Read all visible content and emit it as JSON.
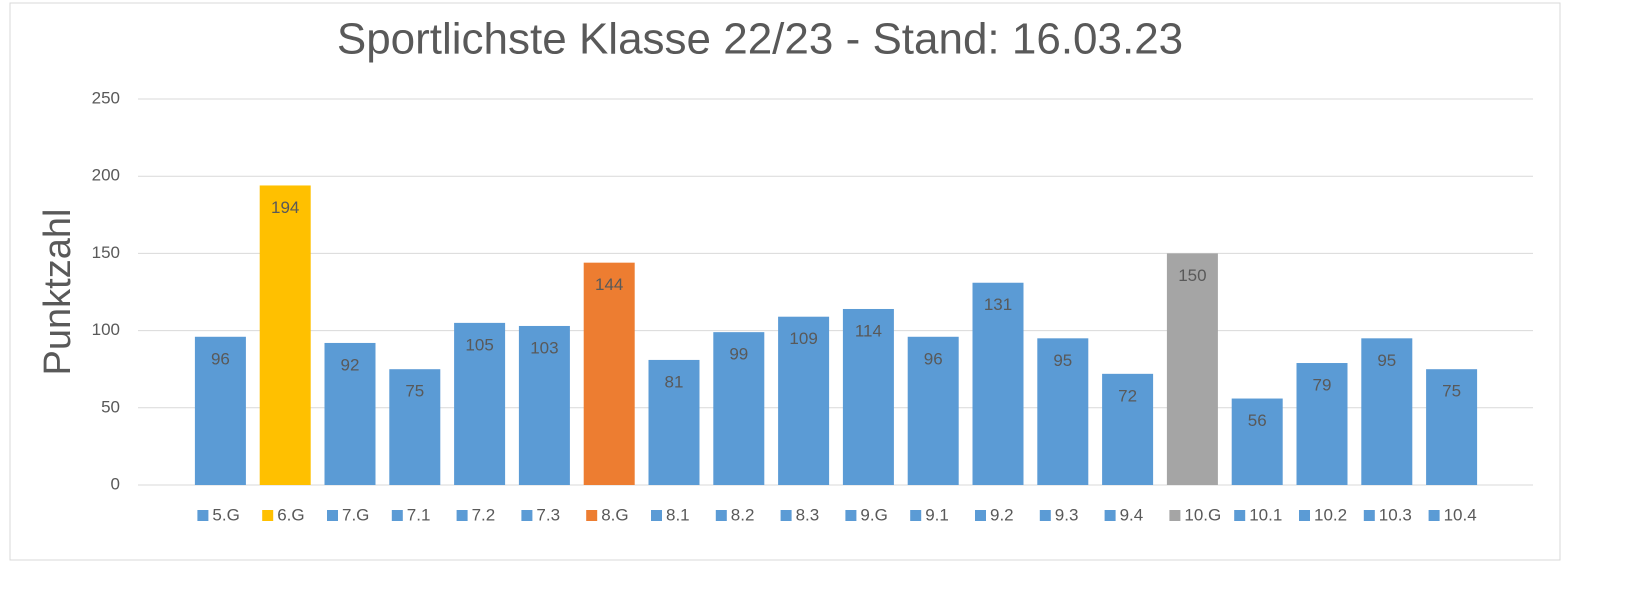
{
  "chart_data": {
    "type": "bar",
    "title": "Sportlichste Klasse 22/23 - Stand: 16.03.23",
    "y_label": "Punktzahl",
    "categories": [
      "5.G",
      "6.G",
      "7.G",
      "7.1",
      "7.2",
      "7.3",
      "8.G",
      "8.1",
      "8.2",
      "8.3",
      "9.G",
      "9.1",
      "9.2",
      "9.3",
      "9.4",
      "10.G",
      "10.1",
      "10.2",
      "10.3",
      "10.4"
    ],
    "values": [
      96,
      194,
      92,
      75,
      105,
      103,
      144,
      81,
      99,
      109,
      114,
      96,
      131,
      95,
      72,
      150,
      56,
      79,
      95,
      75
    ],
    "colors": [
      "#5b9bd5",
      "#ffc000",
      "#5b9bd5",
      "#5b9bd5",
      "#5b9bd5",
      "#5b9bd5",
      "#ed7d31",
      "#5b9bd5",
      "#5b9bd5",
      "#5b9bd5",
      "#5b9bd5",
      "#5b9bd5",
      "#5b9bd5",
      "#5b9bd5",
      "#5b9bd5",
      "#a5a5a5",
      "#5b9bd5",
      "#5b9bd5",
      "#5b9bd5",
      "#5b9bd5"
    ],
    "ylim": [
      0,
      250
    ],
    "yticks": [
      0,
      50,
      100,
      150,
      200,
      250
    ],
    "grid": true,
    "legend": "bottom"
  }
}
